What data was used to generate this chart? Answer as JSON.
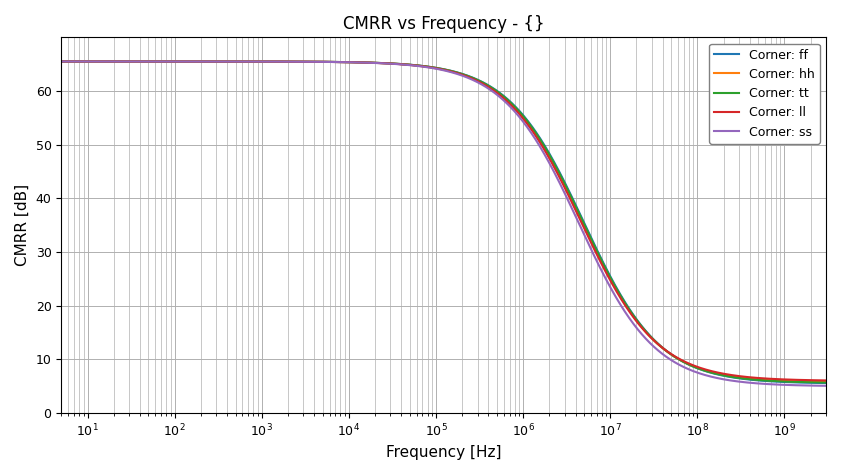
{
  "title": "CMRR vs Frequency - {}",
  "xlabel": "Frequency [Hz]",
  "ylabel": "CMRR [dB]",
  "xmin": 5,
  "xmax": 3000000000.0,
  "ymin": 0,
  "ymax": 70,
  "yticks": [
    0,
    10,
    20,
    30,
    40,
    50,
    60
  ],
  "corners": [
    {
      "label": "Corner: ff",
      "color": "#1f77b4",
      "f0": 5000000.0,
      "k": 1.0,
      "high": 65.5,
      "low": 5.5
    },
    {
      "label": "Corner: hh",
      "color": "#ff7f0e",
      "f0": 4800000.0,
      "k": 1.0,
      "high": 65.5,
      "low": 5.7
    },
    {
      "label": "Corner: tt",
      "color": "#2ca02c",
      "f0": 4900000.0,
      "k": 1.0,
      "high": 65.5,
      "low": 5.6
    },
    {
      "label": "Corner: ll",
      "color": "#d62728",
      "f0": 4600000.0,
      "k": 1.0,
      "high": 65.5,
      "low": 6.0
    },
    {
      "label": "Corner: ss",
      "color": "#9467bd",
      "f0": 4400000.0,
      "k": 1.0,
      "high": 65.5,
      "low": 5.0
    }
  ],
  "background_color": "#ffffff",
  "grid_color": "#b0b0b0"
}
